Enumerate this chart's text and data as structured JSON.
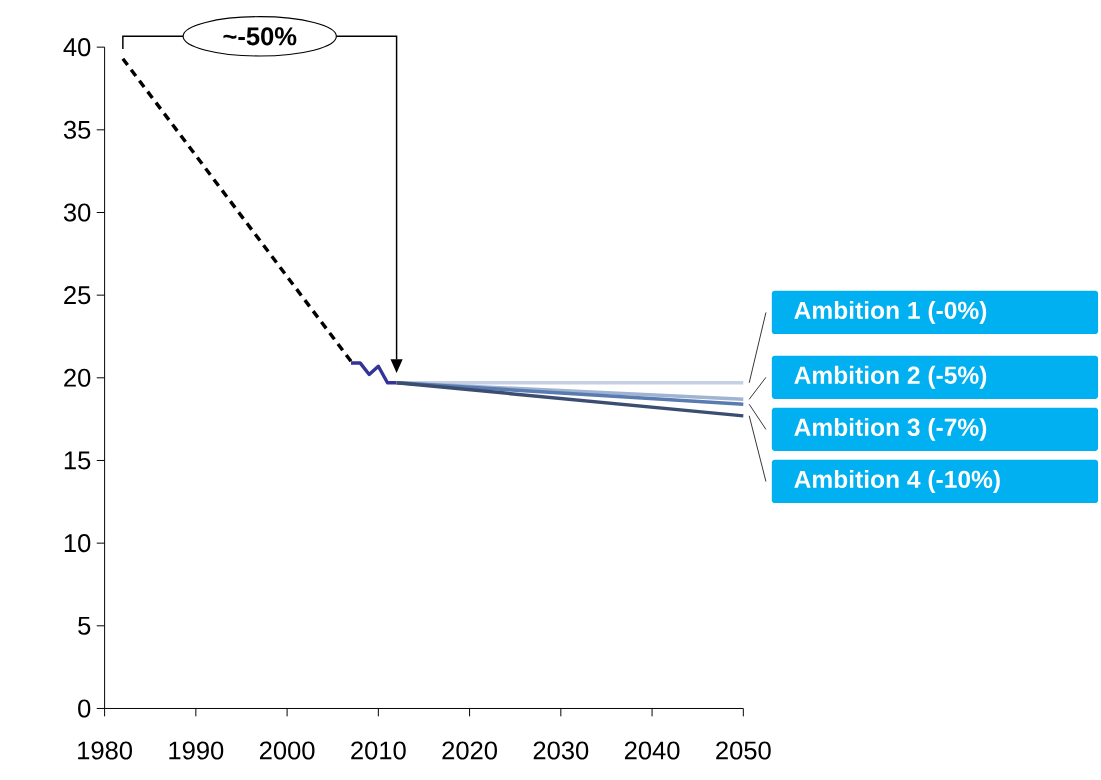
{
  "chart_data": {
    "type": "line",
    "xlim": [
      1980,
      2050
    ],
    "ylim": [
      0,
      40
    ],
    "xticks": [
      1980,
      1990,
      2000,
      2010,
      2020,
      2030,
      2040,
      2050
    ],
    "yticks": [
      0,
      5,
      10,
      15,
      20,
      25,
      30,
      35,
      40
    ],
    "marker": "none",
    "annotations": [
      "~-50%"
    ],
    "series": [
      {
        "color": "#000000",
        "line_style": "dashed",
        "x": [
          1982,
          2007
        ],
        "values": [
          39.3,
          21.0
        ]
      },
      {
        "color": "#333399",
        "x": [
          2007,
          2008,
          2009,
          2010,
          2011,
          2012
        ],
        "values": [
          20.9,
          20.9,
          20.2,
          20.7,
          19.7,
          19.7
        ]
      },
      {
        "name": "Ambition 1 (-0%)",
        "color": "#c5d0e2",
        "x": [
          2012,
          2050
        ],
        "values": [
          19.7,
          19.7
        ]
      },
      {
        "name": "Ambition 2 (-5%)",
        "color": "#9fb3d3",
        "x": [
          2012,
          2050
        ],
        "values": [
          19.7,
          18.7
        ]
      },
      {
        "name": "Ambition 3 (-7%)",
        "color": "#5a7bb0",
        "x": [
          2012,
          2050
        ],
        "values": [
          19.7,
          18.4
        ]
      },
      {
        "name": "Ambition 4 (-10%)",
        "color": "#3b4e72",
        "x": [
          2012,
          2050
        ],
        "values": [
          19.7,
          17.7
        ]
      }
    ]
  }
}
